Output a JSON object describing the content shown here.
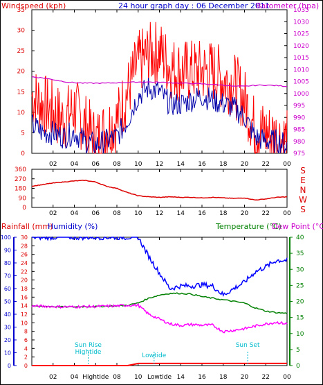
{
  "header": {
    "left_label": "Windspeed (kph)",
    "title": "24 hour graph day : 06 December 2011",
    "right_label": "Barometer (hpa)"
  },
  "x_ticks": [
    "02",
    "04",
    "06",
    "08",
    "10",
    "12",
    "14",
    "16",
    "18",
    "20",
    "22",
    "00"
  ],
  "bottom_ticks": [
    "02",
    "04",
    "Hightide",
    "08",
    "10",
    "Lowtide",
    "14",
    "16",
    "18",
    "20",
    "22",
    "00"
  ],
  "colors": {
    "wind": "#ff0000",
    "gust_avg": "#0000aa",
    "barometer": "#cc00cc",
    "direction": "#dd0000",
    "rain": "#ff0000",
    "humidity": "#0000ff",
    "temperature": "#008000",
    "dewpoint": "#ff00ff",
    "tide": "#00bbcc"
  },
  "chart_data": [
    {
      "type": "line",
      "title": "24 hour graph day : 06 December 2011",
      "xlabel": "",
      "ylabel": "Windspeed (kph)",
      "y2label": "Barometer (hpa)",
      "ylim": [
        0,
        35
      ],
      "y2lim": [
        975,
        1035
      ],
      "yticks": [
        0,
        5,
        10,
        15,
        20,
        25,
        30,
        35
      ],
      "y2ticks": [
        975,
        980,
        985,
        990,
        995,
        1000,
        1005,
        1010,
        1015,
        1020,
        1025,
        1030,
        1035
      ],
      "x_hours": [
        0,
        1,
        2,
        3,
        4,
        5,
        6,
        7,
        8,
        9,
        10,
        11,
        12,
        13,
        14,
        15,
        16,
        17,
        18,
        19,
        20,
        21,
        22,
        23,
        24
      ],
      "series": [
        {
          "name": "Windspeed",
          "values": [
            14,
            12,
            10,
            8,
            11,
            7,
            3,
            6,
            8,
            15,
            22,
            24,
            25,
            21,
            20,
            20,
            20,
            20,
            18,
            17,
            13,
            6,
            5,
            4,
            3
          ]
        },
        {
          "name": "Average",
          "values": [
            7,
            5,
            5,
            4,
            5,
            3,
            2,
            3,
            4,
            8,
            14,
            16,
            15,
            12,
            12,
            13,
            14,
            13,
            12,
            11,
            9,
            4,
            3,
            3,
            2
          ]
        },
        {
          "name": "Barometer",
          "values": [
            1007,
            1006.5,
            1005.8,
            1005,
            1004.5,
            1004.3,
            1004.3,
            1004.3,
            1004.5,
            1004.6,
            1004.8,
            1004.8,
            1004.7,
            1004.5,
            1004.3,
            1004.2,
            1004,
            1003.8,
            1003.5,
            1003,
            1003,
            1003.4,
            1003.5,
            1003.3,
            1003
          ]
        }
      ]
    },
    {
      "type": "line",
      "ylabel": "Wind direction",
      "ylim": [
        0,
        360
      ],
      "yticks": [
        0,
        90,
        180,
        270,
        360
      ],
      "compass": [
        "S",
        "E",
        "N",
        "W",
        "S"
      ],
      "x_hours": [
        0,
        1,
        2,
        3,
        4,
        5,
        6,
        7,
        8,
        9,
        10,
        11,
        12,
        13,
        14,
        15,
        16,
        17,
        18,
        19,
        20,
        21,
        22,
        23,
        24
      ],
      "series": [
        {
          "name": "Direction",
          "values": [
            200,
            215,
            230,
            240,
            250,
            255,
            240,
            200,
            180,
            140,
            110,
            100,
            95,
            100,
            95,
            95,
            90,
            95,
            90,
            85,
            90,
            70,
            80,
            95,
            100
          ]
        }
      ]
    },
    {
      "type": "line",
      "labels": {
        "rain": "Rainfall (mm)",
        "humidity": "Humidity (%)",
        "temperature": "Temperature (°C)",
        "dewpoint": "Dew Point (°C)"
      },
      "rain_ticks": [
        0,
        2,
        4,
        6,
        8,
        10,
        12,
        14,
        16,
        18,
        20,
        22,
        24,
        26,
        28,
        30
      ],
      "hum_ticks": [
        0,
        10,
        20,
        30,
        40,
        50,
        60,
        70,
        80,
        90,
        100
      ],
      "temp_ticks": [
        0,
        5,
        10,
        15,
        20,
        25,
        30,
        35,
        40
      ],
      "rain_lim": [
        0,
        30
      ],
      "hum_lim": [
        0,
        100
      ],
      "temp_lim": [
        0,
        40
      ],
      "x_hours": [
        0,
        1,
        2,
        3,
        4,
        5,
        6,
        7,
        8,
        9,
        10,
        11,
        12,
        13,
        14,
        15,
        16,
        17,
        18,
        19,
        20,
        21,
        22,
        23,
        24
      ],
      "series": [
        {
          "name": "Humidity",
          "values": [
            100,
            100,
            100,
            100,
            100,
            100,
            100,
            100,
            100,
            100,
            100,
            85,
            72,
            60,
            62,
            62,
            63,
            62,
            55,
            60,
            65,
            73,
            77,
            82,
            82
          ]
        },
        {
          "name": "Temperature",
          "values": [
            18.5,
            18.5,
            18.4,
            18.3,
            18.3,
            18.4,
            18.4,
            18.5,
            18.6,
            18.8,
            19.5,
            21,
            22,
            22.5,
            22.5,
            22.3,
            21.5,
            21,
            20.5,
            20,
            19.5,
            18,
            17,
            16.5,
            16.3
          ]
        },
        {
          "name": "Dew Point",
          "values": [
            18.5,
            18.5,
            18.4,
            18.3,
            18.3,
            18.4,
            18.4,
            18.5,
            18.6,
            18.8,
            18.8,
            16,
            14.5,
            13,
            12.5,
            12.8,
            12.6,
            12.6,
            10.6,
            11,
            11.5,
            12.3,
            13,
            13.5,
            13
          ]
        },
        {
          "name": "Rainfall",
          "values": [
            0,
            0,
            0,
            0,
            0,
            0,
            0,
            0,
            0,
            0,
            0.5,
            0.5,
            0.5,
            0.5,
            0.5,
            0.5,
            0.5,
            0.5,
            0.5,
            0.5,
            0.5,
            0.5,
            0.5,
            0.5,
            0.5
          ]
        }
      ],
      "annotations": [
        {
          "text": "Sun Rise",
          "hour": 5.3
        },
        {
          "text": "Hightide",
          "hour": 5.3
        },
        {
          "text": "Lowtide",
          "hour": 11.5
        },
        {
          "text": "Sun Set",
          "hour": 20.3
        }
      ]
    }
  ]
}
